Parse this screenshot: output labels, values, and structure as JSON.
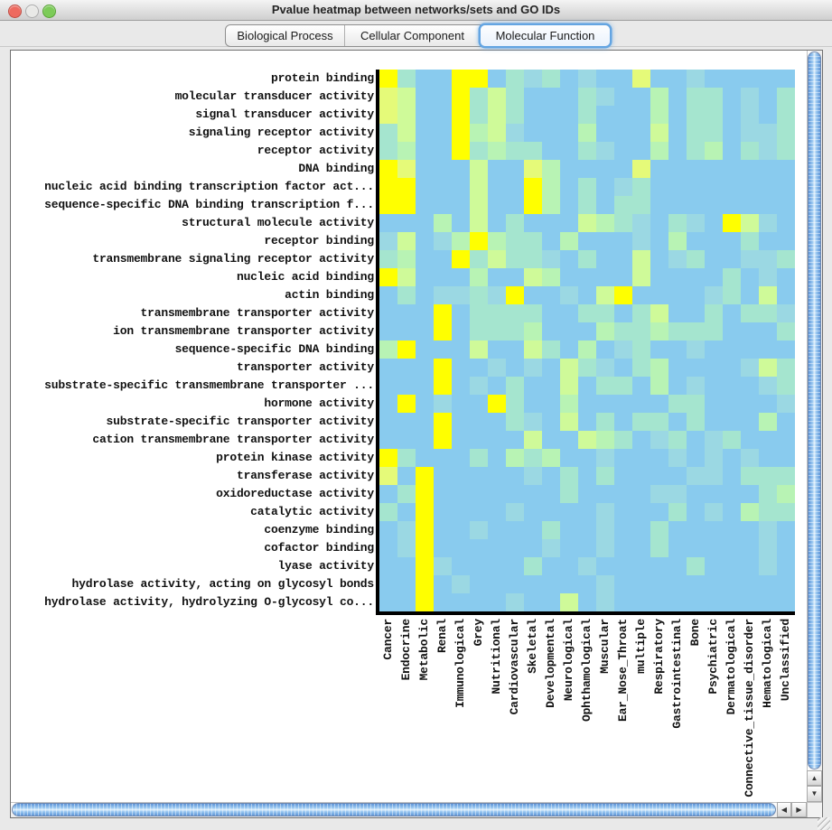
{
  "window": {
    "title": "Pvalue heatmap between networks/sets and GO IDs",
    "traffic_lights": [
      {
        "name": "close-button",
        "color": "#EE6A5F",
        "border": "#BF4A40"
      },
      {
        "name": "minimize-button",
        "color": "#E9E9E7",
        "border": "#ABABAB"
      },
      {
        "name": "zoom-button",
        "color": "#7CCB58",
        "border": "#56A233"
      }
    ]
  },
  "tabs": [
    {
      "label": "Biological Process",
      "selected": false
    },
    {
      "label": "Cellular Component",
      "selected": false
    },
    {
      "label": "Molecular Function",
      "selected": true
    }
  ],
  "chart_data": {
    "type": "heatmap",
    "title": "Pvalue heatmap between networks/sets and GO IDs",
    "rows": [
      "protein binding",
      "molecular transducer activity",
      "signal transducer activity",
      "signaling receptor activity",
      "receptor activity",
      "DNA binding",
      "nucleic acid binding transcription factor act...",
      "sequence-specific DNA binding transcription f...",
      "structural molecule activity",
      "receptor binding",
      "transmembrane signaling receptor activity",
      "nucleic acid binding",
      "actin binding",
      "transmembrane transporter activity",
      "ion transmembrane transporter activity",
      "sequence-specific DNA binding",
      "transporter activity",
      "substrate-specific transmembrane transporter ...",
      "hormone activity",
      "substrate-specific transporter activity",
      "cation transmembrane transporter activity",
      "protein kinase activity",
      "transferase activity",
      "oxidoreductase activity",
      "catalytic activity",
      "coenzyme binding",
      "cofactor binding",
      "lyase activity",
      "hydrolase activity, acting on glycosyl bonds",
      "hydrolase activity, hydrolyzing O-glycosyl co..."
    ],
    "cols": [
      "Cancer",
      "Endocrine",
      "Metabolic",
      "Renal",
      "Immunological",
      "Grey",
      "Nutritional",
      "Cardiovascular",
      "Skeletal",
      "Developmental",
      "Neurological",
      "Ophthamological",
      "Muscular",
      "Ear_Nose_Throat",
      "multiple",
      "Respiratory",
      "Gastrointestinal",
      "Bone",
      "Psychiatric",
      "Dermatological",
      "Connective_tissue_disorder",
      "Hematological",
      "Unclassified"
    ],
    "palette": {
      "0": "#89CBEE",
      "1": "#9BD8E3",
      "2": "#A5E5CF",
      "3": "#B8F3B4",
      "4": "#CFFA99",
      "5": "#E5FA79",
      "6": "#FFFF00"
    },
    "cells": [
      "62006602120100500100000",
      "54006242000210030220102",
      "54006242000200030220102",
      "24006341000300040220112",
      "23006232200210030230212",
      "65000400530000500000000",
      "66000400630201200000000",
      "66000400630202200000000",
      "00030402000432102106410",
      "14013632203000103000200",
      "23006242210200401200112",
      "64000300430000400002010",
      "02011216001046000012040",
      "00060222200220240020221",
      "00060222300032232220002",
      "36000400420301200100000",
      "00060010104210230000142",
      "00060102004022030100012",
      "06010062003000002200001",
      "00060002104020220200030",
      "00060000400432012012000",
      "62000203230010001010100",
      "50600000102020000110222",
      "02600000002000011000023",
      "20600001000010002010322",
      "01600100020010020000010",
      "01600000010010020000010",
      "00610000200100000200010",
      "00601000000010000000000",
      "00600001004010000000000"
    ]
  },
  "scrollbars": {
    "up_arrow": "▲",
    "down_arrow": "▼",
    "left_arrow": "◀",
    "right_arrow": "▶"
  }
}
